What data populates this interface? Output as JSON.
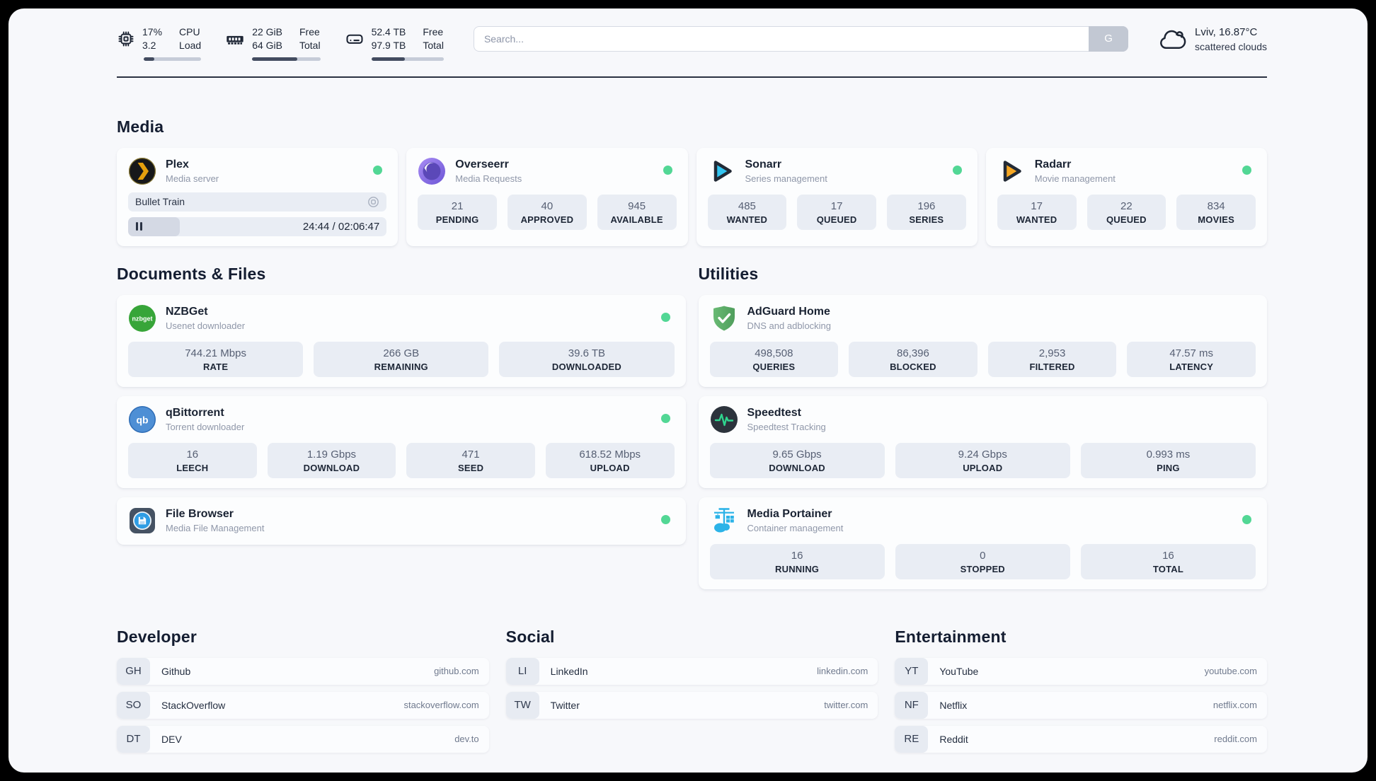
{
  "header": {
    "metrics": [
      {
        "value_top": "17%",
        "value_bottom": "3.2",
        "label_top": "CPU",
        "label_bottom": "Load",
        "progress_pct": 18
      },
      {
        "value_top": "22 GiB",
        "value_bottom": "64 GiB",
        "label_top": "Free",
        "label_bottom": "Total",
        "progress_pct": 66
      },
      {
        "value_top": "52.4 TB",
        "value_bottom": "97.9 TB",
        "label_top": "Free",
        "label_bottom": "Total",
        "progress_pct": 46
      }
    ],
    "search": {
      "placeholder": "Search...",
      "button_label": "G"
    },
    "weather": {
      "summary": "Lviv, 16.87°C",
      "condition": "scattered clouds"
    }
  },
  "sections": {
    "media": "Media",
    "documents": "Documents & Files",
    "utilities": "Utilities",
    "developer": "Developer",
    "social": "Social",
    "entertainment": "Entertainment"
  },
  "services": {
    "plex": {
      "title": "Plex",
      "subtitle": "Media server",
      "now_playing": "Bullet Train",
      "time": "24:44 / 02:06:47",
      "progress_pct": 20
    },
    "overseerr": {
      "title": "Overseerr",
      "subtitle": "Media Requests",
      "stats": [
        {
          "value": "21",
          "label": "PENDING"
        },
        {
          "value": "40",
          "label": "APPROVED"
        },
        {
          "value": "945",
          "label": "AVAILABLE"
        }
      ]
    },
    "sonarr": {
      "title": "Sonarr",
      "subtitle": "Series management",
      "stats": [
        {
          "value": "485",
          "label": "WANTED"
        },
        {
          "value": "17",
          "label": "QUEUED"
        },
        {
          "value": "196",
          "label": "SERIES"
        }
      ]
    },
    "radarr": {
      "title": "Radarr",
      "subtitle": "Movie management",
      "stats": [
        {
          "value": "17",
          "label": "WANTED"
        },
        {
          "value": "22",
          "label": "QUEUED"
        },
        {
          "value": "834",
          "label": "MOVIES"
        }
      ]
    },
    "nzbget": {
      "title": "NZBGet",
      "subtitle": "Usenet downloader",
      "stats": [
        {
          "value": "744.21 Mbps",
          "label": "RATE"
        },
        {
          "value": "266 GB",
          "label": "REMAINING"
        },
        {
          "value": "39.6 TB",
          "label": "DOWNLOADED"
        }
      ]
    },
    "qbittorrent": {
      "title": "qBittorrent",
      "subtitle": "Torrent downloader",
      "stats": [
        {
          "value": "16",
          "label": "LEECH"
        },
        {
          "value": "1.19 Gbps",
          "label": "DOWNLOAD"
        },
        {
          "value": "471",
          "label": "SEED"
        },
        {
          "value": "618.52 Mbps",
          "label": "UPLOAD"
        }
      ]
    },
    "filebrowser": {
      "title": "File Browser",
      "subtitle": "Media File Management"
    },
    "adguard": {
      "title": "AdGuard Home",
      "subtitle": "DNS and adblocking",
      "stats": [
        {
          "value": "498,508",
          "label": "QUERIES"
        },
        {
          "value": "86,396",
          "label": "BLOCKED"
        },
        {
          "value": "2,953",
          "label": "FILTERED"
        },
        {
          "value": "47.57 ms",
          "label": "LATENCY"
        }
      ]
    },
    "speedtest": {
      "title": "Speedtest",
      "subtitle": "Speedtest Tracking",
      "stats": [
        {
          "value": "9.65 Gbps",
          "label": "DOWNLOAD"
        },
        {
          "value": "9.24 Gbps",
          "label": "UPLOAD"
        },
        {
          "value": "0.993 ms",
          "label": "PING"
        }
      ]
    },
    "portainer": {
      "title": "Media Portainer",
      "subtitle": "Container management",
      "stats": [
        {
          "value": "16",
          "label": "RUNNING"
        },
        {
          "value": "0",
          "label": "STOPPED"
        },
        {
          "value": "16",
          "label": "TOTAL"
        }
      ]
    }
  },
  "links": {
    "developer": [
      {
        "abbr": "GH",
        "name": "Github",
        "url": "github.com"
      },
      {
        "abbr": "SO",
        "name": "StackOverflow",
        "url": "stackoverflow.com"
      },
      {
        "abbr": "DT",
        "name": "DEV",
        "url": "dev.to"
      }
    ],
    "social": [
      {
        "abbr": "LI",
        "name": "LinkedIn",
        "url": "linkedin.com"
      },
      {
        "abbr": "TW",
        "name": "Twitter",
        "url": "twitter.com"
      }
    ],
    "entertainment": [
      {
        "abbr": "YT",
        "name": "YouTube",
        "url": "youtube.com"
      },
      {
        "abbr": "NF",
        "name": "Netflix",
        "url": "netflix.com"
      },
      {
        "abbr": "RE",
        "name": "Reddit",
        "url": "reddit.com"
      }
    ]
  },
  "colors": {
    "status_online": "#52d795",
    "header_divider": "#2b3242"
  }
}
